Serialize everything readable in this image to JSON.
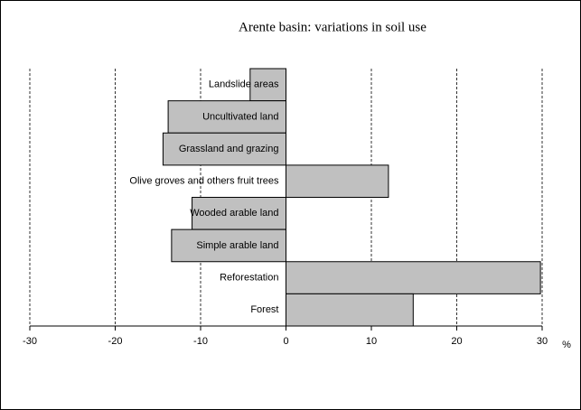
{
  "chart_data": {
    "type": "hbar",
    "title": "Arente basin: variations in soil use",
    "x_label": "%",
    "categories": [
      "Landslide areas",
      "Uncultivated land",
      "Grassland and grazing",
      "Olive groves and others fruit trees",
      "Wooded arable land",
      "Simple arable land",
      "Reforestation",
      "Forest"
    ],
    "values": [
      -4.2,
      -13.8,
      -14.4,
      12.0,
      -11.0,
      -13.4,
      29.8,
      14.9
    ],
    "color": "#c0c0c0",
    "xlim": [
      -30,
      30
    ],
    "xticks": [
      -30,
      -20,
      -10,
      0,
      10,
      20,
      30
    ],
    "grid": true
  }
}
